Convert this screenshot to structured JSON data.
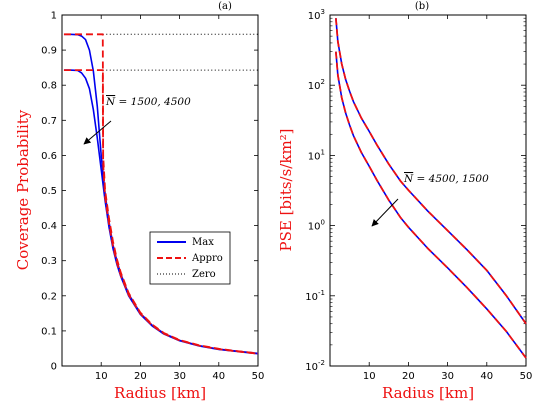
{
  "colors": {
    "max": "#0000ee",
    "appro": "#ee1111",
    "zero": "#000000",
    "label": "#ee1111"
  },
  "chart_data": [
    {
      "type": "line",
      "panel_label": "(a)",
      "xlabel": "Radius [km]",
      "ylabel": "Coverage Probability",
      "xlim": [
        0,
        50
      ],
      "ylim": [
        0,
        1
      ],
      "xscale": "linear",
      "yscale": "linear",
      "xticks": [
        "10",
        "20",
        "30",
        "40",
        "50"
      ],
      "yticks": [
        "0",
        "0.1",
        "0.2",
        "0.3",
        "0.4",
        "0.5",
        "0.6",
        "0.7",
        "0.8",
        "0.9",
        "1"
      ],
      "legend": {
        "placement": "center-right",
        "entries": [
          "Max",
          "Appro",
          "Zero"
        ]
      },
      "annotation": "N = 1500, 4500",
      "series": [
        {
          "name": "Max",
          "style": "solid",
          "color": "#0000ee",
          "curves": [
            {
              "x": [
                0.5,
                2,
                4,
                5,
                6,
                7,
                8,
                9,
                10,
                11,
                12,
                13,
                14,
                15,
                17,
                20,
                23,
                26,
                30,
                35,
                40,
                45,
                50
              ],
              "y": [
                0.945,
                0.945,
                0.944,
                0.94,
                0.93,
                0.9,
                0.84,
                0.74,
                0.6,
                0.49,
                0.41,
                0.345,
                0.3,
                0.262,
                0.205,
                0.15,
                0.116,
                0.093,
                0.073,
                0.058,
                0.048,
                0.042,
                0.036
              ]
            },
            {
              "x": [
                0.5,
                2,
                4,
                5,
                6,
                7,
                8,
                9,
                10,
                11,
                12,
                13,
                14,
                15,
                17,
                20,
                23,
                26,
                30,
                35,
                40,
                45,
                50
              ],
              "y": [
                0.843,
                0.843,
                0.842,
                0.835,
                0.82,
                0.79,
                0.73,
                0.65,
                0.56,
                0.47,
                0.395,
                0.335,
                0.29,
                0.255,
                0.2,
                0.147,
                0.114,
                0.091,
                0.072,
                0.057,
                0.047,
                0.041,
                0.035
              ]
            }
          ]
        },
        {
          "name": "Appro",
          "style": "dashed",
          "color": "#ee1111",
          "curves": [
            {
              "x": [
                0.5,
                10.4,
                10.5,
                11,
                12,
                13,
                14,
                15,
                17,
                20,
                23,
                26,
                30,
                35,
                40,
                45,
                50
              ],
              "y": [
                0.945,
                0.945,
                0.6,
                0.5,
                0.42,
                0.355,
                0.305,
                0.266,
                0.208,
                0.152,
                0.118,
                0.094,
                0.074,
                0.059,
                0.049,
                0.042,
                0.036
              ]
            },
            {
              "x": [
                0.5,
                10.4,
                10.5,
                11,
                12,
                13,
                14,
                15,
                17,
                20,
                23,
                26,
                30,
                35,
                40,
                45,
                50
              ],
              "y": [
                0.843,
                0.843,
                0.575,
                0.48,
                0.405,
                0.342,
                0.295,
                0.258,
                0.203,
                0.149,
                0.116,
                0.092,
                0.073,
                0.058,
                0.048,
                0.041,
                0.035
              ]
            }
          ]
        },
        {
          "name": "Zero",
          "style": "dotted",
          "color": "#000000",
          "curves": [
            {
              "x": [
                10.4,
                50
              ],
              "y": [
                0.945,
                0.945
              ]
            },
            {
              "x": [
                10.4,
                50
              ],
              "y": [
                0.843,
                0.843
              ]
            }
          ]
        }
      ]
    },
    {
      "type": "line",
      "panel_label": "(b)",
      "xlabel": "Radius [km]",
      "ylabel": "PSE [bits/s/km²]",
      "xlim": [
        0,
        50
      ],
      "ylim": [
        0.01,
        1000
      ],
      "xscale": "linear",
      "yscale": "log",
      "xticks": [
        "10",
        "20",
        "30",
        "40",
        "50"
      ],
      "yticks_exp": [
        "-2",
        "-1",
        "0",
        "1",
        "2",
        "3"
      ],
      "annotation": "N = 4500, 1500",
      "series": [
        {
          "name": "Max",
          "style": "solid",
          "color": "#0000ee",
          "curves": [
            {
              "x": [
                1.5,
                2,
                3,
                4,
                5,
                6,
                8,
                10,
                12,
                15,
                18,
                20,
                25,
                30,
                35,
                40,
                45,
                50
              ],
              "y": [
                900,
                420,
                200,
                120,
                82,
                58,
                34,
                22,
                14,
                7.5,
                4.3,
                3.2,
                1.6,
                0.85,
                0.45,
                0.23,
                0.1,
                0.04
              ]
            },
            {
              "x": [
                1.5,
                2,
                3,
                4,
                5,
                6,
                8,
                10,
                12,
                15,
                18,
                20,
                25,
                30,
                35,
                40,
                45,
                50
              ],
              "y": [
                300,
                140,
                66,
                40,
                27,
                19,
                11,
                7,
                4.4,
                2.3,
                1.3,
                0.95,
                0.47,
                0.25,
                0.13,
                0.065,
                0.031,
                0.013
              ]
            }
          ]
        },
        {
          "name": "Appro",
          "style": "dashed",
          "color": "#ee1111",
          "curves": [
            {
              "x": [
                1.5,
                2,
                3,
                4,
                5,
                6,
                8,
                10,
                12,
                15,
                18,
                20,
                25,
                30,
                35,
                40,
                45,
                50
              ],
              "y": [
                900,
                420,
                200,
                120,
                82,
                58,
                34,
                22,
                14,
                7.5,
                4.3,
                3.2,
                1.6,
                0.85,
                0.45,
                0.23,
                0.1,
                0.04
              ]
            },
            {
              "x": [
                1.5,
                2,
                3,
                4,
                5,
                6,
                8,
                10,
                12,
                15,
                18,
                20,
                25,
                30,
                35,
                40,
                45,
                50
              ],
              "y": [
                300,
                140,
                66,
                40,
                27,
                19,
                11,
                7,
                4.4,
                2.3,
                1.3,
                0.95,
                0.47,
                0.25,
                0.13,
                0.065,
                0.031,
                0.013
              ]
            }
          ]
        }
      ]
    }
  ]
}
